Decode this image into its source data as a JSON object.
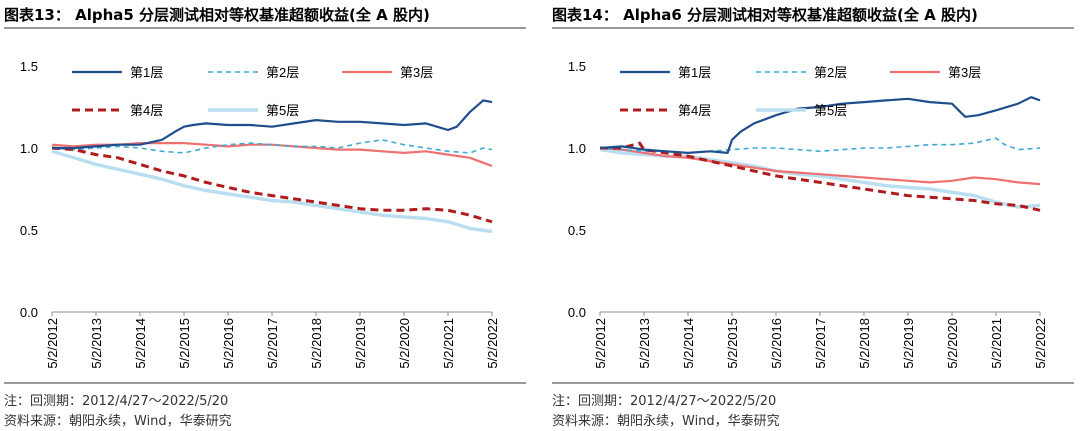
{
  "charts": [
    {
      "title": "图表13： Alpha5 分层测试相对等权基准超额收益(全 A 股内)",
      "note": "注：回测期：2012/4/27～2022/5/20",
      "source": "资料来源：朝阳永续，Wind，华泰研究"
    },
    {
      "title": "图表14： Alpha6 分层测试相对等权基准超额收益(全 A 股内)",
      "note": "注：回测期：2012/4/27～2022/5/20",
      "source": "资料来源：朝阳永续，Wind，华泰研究"
    }
  ],
  "chart_data": [
    {
      "type": "line",
      "title": "Alpha5 分层测试相对等权基准超额收益(全 A 股内)",
      "xlabel": "",
      "ylabel": "",
      "ylim": [
        0.0,
        1.5
      ],
      "yticks": [
        "0.0",
        "0.5",
        "1.0",
        "1.5"
      ],
      "x_tick_labels": [
        "5/2/2012",
        "5/2/2013",
        "5/2/2014",
        "5/2/2015",
        "5/2/2016",
        "5/2/2017",
        "5/2/2018",
        "5/2/2019",
        "5/2/2020",
        "5/2/2021",
        "5/2/2022"
      ],
      "x_unit": "years since 2012-05-02",
      "legend": "top-left, inside plot",
      "series": [
        {
          "name": "第1层",
          "color": "#1f4e8c",
          "dash": "solid",
          "x": [
            0,
            0.5,
            1,
            1.5,
            2,
            2.5,
            2.8,
            3,
            3.2,
            3.5,
            4,
            4.5,
            5,
            5.5,
            6,
            6.5,
            7,
            7.5,
            8,
            8.5,
            9,
            9.2,
            9.5,
            9.8,
            10
          ],
          "y": [
            1.0,
            1.0,
            1.01,
            1.02,
            1.02,
            1.05,
            1.1,
            1.13,
            1.14,
            1.15,
            1.14,
            1.14,
            1.13,
            1.15,
            1.17,
            1.16,
            1.16,
            1.15,
            1.14,
            1.15,
            1.11,
            1.13,
            1.22,
            1.29,
            1.28
          ]
        },
        {
          "name": "第2层",
          "color": "#3fa9d6",
          "dash": "dashed",
          "x": [
            0,
            0.5,
            1,
            1.5,
            2,
            2.5,
            3,
            3.5,
            4,
            4.5,
            5,
            5.5,
            6,
            6.5,
            7,
            7.5,
            8,
            8.5,
            9,
            9.5,
            9.8,
            10
          ],
          "y": [
            1.0,
            0.99,
            1.0,
            1.01,
            1.0,
            0.98,
            0.97,
            1.0,
            1.02,
            1.03,
            1.02,
            1.01,
            1.01,
            1.0,
            1.03,
            1.05,
            1.02,
            1.0,
            0.98,
            0.97,
            1.0,
            0.99
          ]
        },
        {
          "name": "第3层",
          "color": "#f07070",
          "dash": "solid",
          "x": [
            0,
            0.5,
            1,
            1.5,
            2,
            2.5,
            3,
            3.5,
            4,
            4.5,
            5,
            5.5,
            6,
            6.5,
            7,
            7.5,
            8,
            8.5,
            9,
            9.5,
            10
          ],
          "y": [
            1.02,
            1.01,
            1.02,
            1.02,
            1.03,
            1.03,
            1.03,
            1.02,
            1.01,
            1.02,
            1.02,
            1.01,
            1.0,
            0.99,
            0.99,
            0.98,
            0.97,
            0.98,
            0.96,
            0.94,
            0.89
          ]
        },
        {
          "name": "第4层",
          "color": "#b01c1c",
          "dash": "bold-dashed",
          "x": [
            0,
            0.5,
            1,
            1.5,
            2,
            2.5,
            3,
            3.5,
            4,
            4.5,
            5,
            5.5,
            6,
            6.5,
            7,
            7.5,
            8,
            8.5,
            9,
            9.5,
            10
          ],
          "y": [
            1.0,
            0.99,
            0.96,
            0.94,
            0.9,
            0.86,
            0.83,
            0.79,
            0.76,
            0.73,
            0.71,
            0.69,
            0.67,
            0.65,
            0.63,
            0.62,
            0.62,
            0.63,
            0.62,
            0.59,
            0.55
          ]
        },
        {
          "name": "第5层",
          "color": "#b8def0",
          "dash": "solid",
          "x": [
            0,
            0.5,
            1,
            1.5,
            2,
            2.5,
            3,
            3.5,
            4,
            4.5,
            5,
            5.5,
            6,
            6.5,
            7,
            7.5,
            8,
            8.5,
            9,
            9.5,
            10
          ],
          "y": [
            0.98,
            0.94,
            0.9,
            0.87,
            0.84,
            0.81,
            0.77,
            0.74,
            0.72,
            0.7,
            0.68,
            0.67,
            0.65,
            0.63,
            0.61,
            0.59,
            0.58,
            0.57,
            0.55,
            0.51,
            0.49
          ]
        }
      ]
    },
    {
      "type": "line",
      "title": "Alpha6 分层测试相对等权基准超额收益(全 A 股内)",
      "xlabel": "",
      "ylabel": "",
      "ylim": [
        0.0,
        1.5
      ],
      "yticks": [
        "0.0",
        "0.5",
        "1.0",
        "1.5"
      ],
      "x_tick_labels": [
        "5/2/2012",
        "5/2/2013",
        "5/2/2014",
        "5/2/2015",
        "5/2/2016",
        "5/2/2017",
        "5/2/2018",
        "5/2/2019",
        "5/2/2020",
        "5/2/2021",
        "5/2/2022"
      ],
      "x_unit": "years since 2012-05-02",
      "legend": "top-left, inside plot",
      "series": [
        {
          "name": "第1层",
          "color": "#1f4e8c",
          "dash": "solid",
          "x": [
            0,
            0.5,
            1,
            1.5,
            2,
            2.5,
            2.9,
            3.0,
            3.2,
            3.5,
            4,
            4.5,
            5,
            5.5,
            6,
            6.5,
            7,
            7.5,
            8,
            8.3,
            8.6,
            9,
            9.5,
            9.8,
            10
          ],
          "y": [
            1.0,
            1.01,
            0.99,
            0.98,
            0.97,
            0.98,
            0.97,
            1.05,
            1.1,
            1.15,
            1.2,
            1.24,
            1.25,
            1.27,
            1.28,
            1.29,
            1.3,
            1.28,
            1.27,
            1.19,
            1.2,
            1.23,
            1.27,
            1.31,
            1.29
          ]
        },
        {
          "name": "第2层",
          "color": "#3fa9d6",
          "dash": "dashed",
          "x": [
            0,
            0.5,
            1,
            1.5,
            2,
            2.5,
            3,
            3.5,
            4,
            4.5,
            5,
            5.5,
            6,
            6.5,
            7,
            7.5,
            8,
            8.5,
            9,
            9.2,
            9.5,
            10
          ],
          "y": [
            1.0,
            0.99,
            0.98,
            0.98,
            0.97,
            0.98,
            0.99,
            1.0,
            1.0,
            0.99,
            0.98,
            0.99,
            1.0,
            1.0,
            1.01,
            1.02,
            1.02,
            1.03,
            1.06,
            1.02,
            0.99,
            1.0
          ]
        },
        {
          "name": "第3层",
          "color": "#f07070",
          "dash": "solid",
          "x": [
            0,
            0.5,
            1,
            1.5,
            2,
            2.5,
            3,
            3.5,
            4,
            4.5,
            5,
            5.5,
            6,
            6.5,
            7,
            7.5,
            8,
            8.5,
            9,
            9.5,
            10
          ],
          "y": [
            1.0,
            0.99,
            0.97,
            0.95,
            0.94,
            0.92,
            0.9,
            0.88,
            0.86,
            0.85,
            0.84,
            0.83,
            0.82,
            0.81,
            0.8,
            0.79,
            0.8,
            0.82,
            0.81,
            0.79,
            0.78
          ]
        },
        {
          "name": "第4层",
          "color": "#b01c1c",
          "dash": "bold-dashed",
          "x": [
            0,
            0.5,
            0.9,
            1,
            1.5,
            2,
            2.5,
            3,
            3.5,
            4,
            4.5,
            5,
            5.5,
            6,
            6.5,
            7,
            7.5,
            8,
            8.5,
            9,
            9.5,
            10
          ],
          "y": [
            1.0,
            1.0,
            1.03,
            0.99,
            0.97,
            0.95,
            0.92,
            0.89,
            0.86,
            0.83,
            0.81,
            0.79,
            0.77,
            0.75,
            0.73,
            0.71,
            0.7,
            0.69,
            0.68,
            0.66,
            0.65,
            0.62
          ]
        },
        {
          "name": "第5层",
          "color": "#b8def0",
          "dash": "solid",
          "x": [
            0,
            0.5,
            1,
            1.5,
            2,
            2.5,
            3,
            3.5,
            4,
            4.5,
            5,
            5.5,
            6,
            6.5,
            7,
            7.5,
            8,
            8.5,
            9,
            9.5,
            10
          ],
          "y": [
            0.99,
            0.97,
            0.96,
            0.95,
            0.95,
            0.93,
            0.91,
            0.89,
            0.86,
            0.84,
            0.83,
            0.81,
            0.79,
            0.77,
            0.76,
            0.75,
            0.73,
            0.71,
            0.67,
            0.64,
            0.65
          ]
        }
      ]
    }
  ]
}
